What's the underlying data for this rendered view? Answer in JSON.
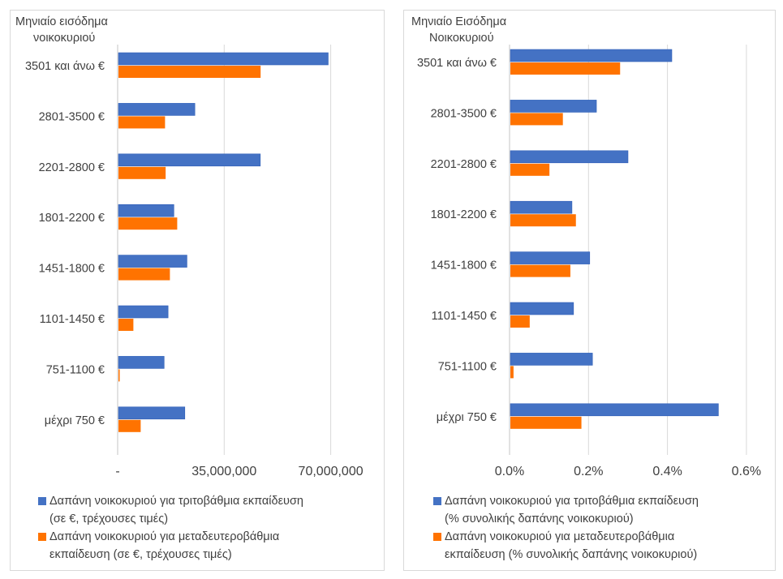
{
  "colors": {
    "series1": "#4472C4",
    "series2": "#FF7300",
    "grid": "#d9d9d9"
  },
  "chart_data": [
    {
      "type": "bar",
      "orientation": "horizontal",
      "yaxis_title": [
        "Μηνιαίο εισόδημα",
        "νοικοκυριού"
      ],
      "categories": [
        "3501 και άνω €",
        "2801-3500 €",
        "2201-2800 €",
        "1801-2200 €",
        "1451-1800 €",
        "1101-1450 €",
        "751-1100 €",
        "μέχρι 750 €"
      ],
      "xlim": [
        0,
        80000000
      ],
      "xticks": [
        0,
        35000000,
        70000000
      ],
      "xtick_labels": [
        "-",
        "35,000,000",
        "70,000,000"
      ],
      "grid": true,
      "legend_position": "bottom",
      "series": [
        {
          "name": "Δαπάνη νοικοκυριού για τριτοβάθμια εκπαίδευση (σε €, τρέχουσες τιμές)",
          "legend_lines": [
            "Δαπάνη νοικοκυριού για τριτοβάθμια εκπαίδευση",
            "(σε €, τρέχουσες τιμές)"
          ],
          "values": [
            68900000,
            25100000,
            46600000,
            18200000,
            22500000,
            16300000,
            15000000,
            21800000
          ]
        },
        {
          "name": "Δαπάνη νοικοκυριού για μεταδευτεροβάθμια εκπαίδευση (σε €, τρέχουσες τιμές)",
          "legend_lines": [
            "Δαπάνη νοικοκυριού για μεταδευτεροβάθμια",
            "εκπαίδευση (σε €, τρέχουσες τιμές)"
          ],
          "values": [
            46700000,
            15300000,
            15500000,
            19300000,
            16900000,
            4900000,
            400000,
            7300000
          ]
        }
      ]
    },
    {
      "type": "bar",
      "orientation": "horizontal",
      "yaxis_title": [
        "Μηνιαίο Εισόδημα",
        "Νοικοκυριού"
      ],
      "categories": [
        "3501 και άνω €",
        "2801-3500 €",
        "2201-2800 €",
        "1801-2200 €",
        "1451-1800 €",
        "1101-1450 €",
        "751-1100 €",
        "μέχρι 750 €"
      ],
      "xlim": [
        0,
        0.6
      ],
      "xticks": [
        0,
        0.2,
        0.4,
        0.6
      ],
      "xtick_labels": [
        "0.0%",
        "0.2%",
        "0.4%",
        "0.6%"
      ],
      "unit": "%",
      "grid": true,
      "legend_position": "bottom",
      "series": [
        {
          "name": "Δαπάνη νοικοκυριού για τριτοβάθμια εκπαίδευση (% συνολικής δαπάνης νοικοκυριού)",
          "legend_lines": [
            "Δαπάνη νοικοκυριού για τριτοβάθμια εκπαίδευση",
            "(% συνολικής δαπάνης νοικοκυριού)"
          ],
          "values": [
            0.409,
            0.218,
            0.298,
            0.156,
            0.201,
            0.16,
            0.208,
            0.527
          ]
        },
        {
          "name": "Δαπάνη νοικοκυριού για μεταδευτεροβάθμια εκπαίδευση (% συνολικής δαπάνης νοικοκυριού)",
          "legend_lines": [
            "Δαπάνη νοικοκυριού για μεταδευτεροβάθμια",
            "εκπαίδευση (% συνολικής δαπάνης νοικοκυριού)"
          ],
          "values": [
            0.278,
            0.133,
            0.099,
            0.166,
            0.152,
            0.049,
            0.008,
            0.18
          ]
        }
      ]
    }
  ]
}
